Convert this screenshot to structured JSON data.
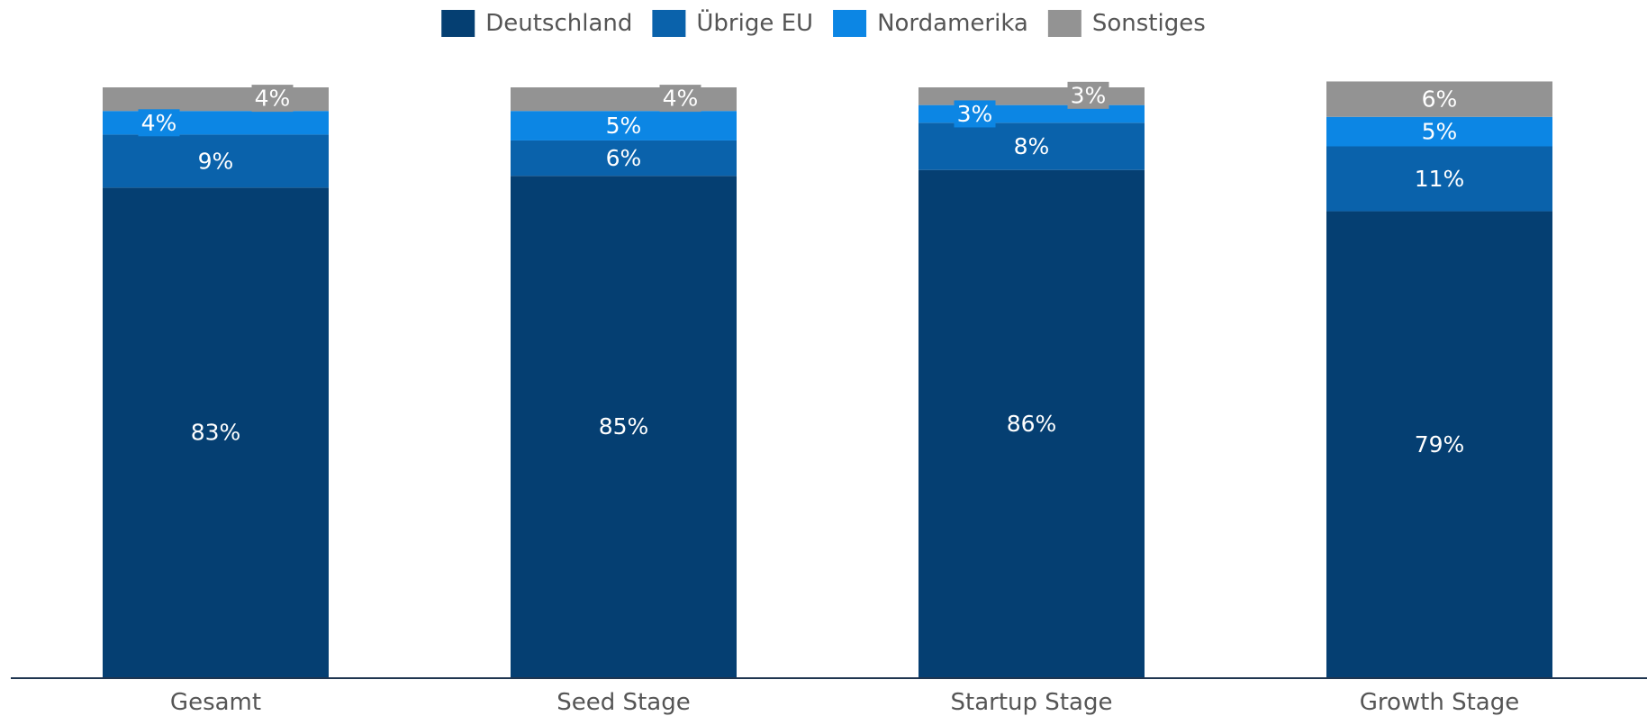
{
  "chart_data": {
    "type": "bar",
    "stacked": true,
    "categories": [
      "Gesamt",
      "Seed Stage",
      "Startup Stage",
      "Growth Stage"
    ],
    "series": [
      {
        "name": "Deutschland",
        "color": "#053f72",
        "values": [
          83,
          85,
          86,
          79
        ],
        "labels": [
          "83%",
          "85%",
          "86%",
          "79%"
        ]
      },
      {
        "name": "Übrige EU",
        "color": "#0a62ab",
        "values": [
          9,
          6,
          8,
          11
        ],
        "labels": [
          "9%",
          "6%",
          "8%",
          "11%"
        ]
      },
      {
        "name": "Nordamerika",
        "color": "#0c86e4",
        "values": [
          4,
          5,
          3,
          5
        ],
        "labels": [
          "4%",
          "5%",
          "3%",
          "5%"
        ]
      },
      {
        "name": "Sonstiges",
        "color": "#939393",
        "values": [
          4,
          4,
          3,
          6
        ],
        "labels": [
          "4%",
          "4%",
          "3%",
          "6%"
        ]
      }
    ],
    "ylim": [
      0,
      100
    ],
    "grid": false,
    "legend_position": "top-center",
    "axis_color": "#1f3550"
  }
}
